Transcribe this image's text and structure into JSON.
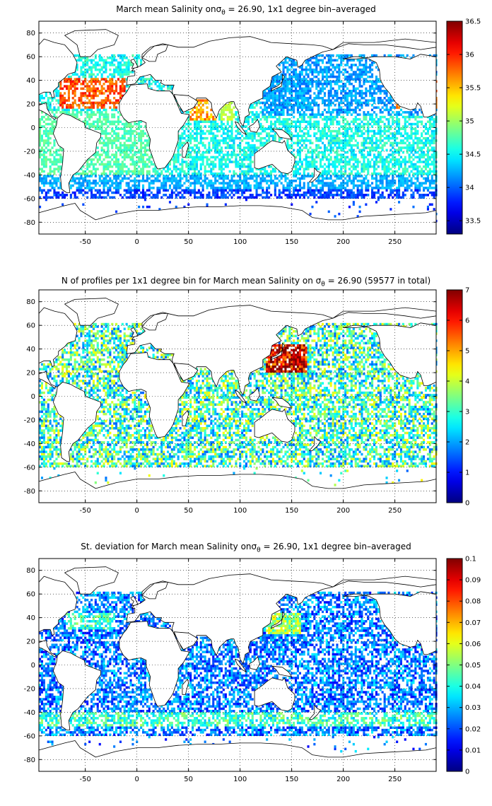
{
  "panels": [
    {
      "title_prefix": "March mean Salinity onσ",
      "title_sub": "θ",
      "title_suffix": " = 26.90, 1x1 degree bin–averaged",
      "colorbar": {
        "ticks": [
          "36.5",
          "36",
          "35.5",
          "35",
          "34.5",
          "34",
          "33.5"
        ],
        "range": [
          33.3,
          36.5
        ]
      },
      "kind": "salinity"
    },
    {
      "title_prefix": "N of profiles per 1x1 degree bin for March mean Salinity on σ",
      "title_sub": "θ",
      "title_suffix": " = 26.90 (59577 in total)",
      "colorbar": {
        "ticks": [
          "7",
          "6",
          "5",
          "4",
          "3",
          "2",
          "1",
          "0"
        ],
        "range": [
          0,
          7
        ]
      },
      "kind": "count"
    },
    {
      "title_prefix": "St. deviation for March mean Salinity onσ",
      "title_sub": "θ",
      "title_suffix": " = 26.90, 1x1 degree bin–averaged",
      "colorbar": {
        "ticks": [
          "0.1",
          "0.09",
          "0.08",
          "0.07",
          "0.06",
          "0.05",
          "0.04",
          "0.03",
          "0.02",
          "0.01",
          "0"
        ],
        "range": [
          0,
          0.1
        ]
      },
      "kind": "std"
    }
  ],
  "axes": {
    "xticks": [
      "-50",
      "0",
      "50",
      "100",
      "150",
      "200",
      "250"
    ],
    "xvalues": [
      -50,
      0,
      50,
      100,
      150,
      200,
      250
    ],
    "xlim": [
      -95,
      290
    ],
    "yticks": [
      "80",
      "60",
      "40",
      "20",
      "0",
      "-20",
      "-40",
      "-60",
      "-80"
    ],
    "yvalues": [
      80,
      60,
      40,
      20,
      0,
      -20,
      -40,
      -60,
      -80
    ],
    "ylim": [
      -90,
      90
    ],
    "grid": "dotted"
  },
  "colormap": "jet"
}
